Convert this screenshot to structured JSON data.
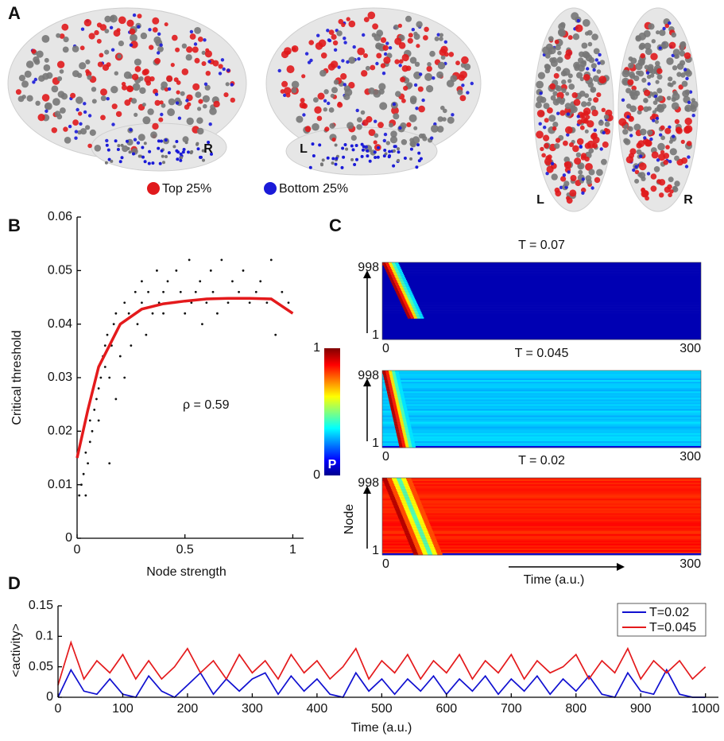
{
  "panel_labels": [
    "A",
    "B",
    "C",
    "D"
  ],
  "brain": {
    "labels": [
      "R",
      "L",
      "L",
      "R"
    ],
    "legend": [
      {
        "name": "Top 25%",
        "color": "#e0191c"
      },
      {
        "name": "Bottom 25%",
        "color": "#1a1ad8"
      }
    ]
  },
  "chart_data": [
    {
      "type": "scatter",
      "x_label": "Node strength",
      "y_label": "Critical threshold",
      "annotation": "ρ = 0.59",
      "xlim": [
        0,
        1.05
      ],
      "ylim": [
        0,
        0.06
      ],
      "xticks": [
        0,
        0.5,
        1
      ],
      "yticks": [
        0,
        0.01,
        0.02,
        0.03,
        0.04,
        0.05,
        0.06
      ],
      "series": [
        {
          "type": "scatter",
          "color": "#111111",
          "x": [
            0.01,
            0.02,
            0.03,
            0.04,
            0.04,
            0.05,
            0.06,
            0.06,
            0.07,
            0.08,
            0.09,
            0.1,
            0.1,
            0.11,
            0.12,
            0.13,
            0.13,
            0.14,
            0.15,
            0.15,
            0.16,
            0.17,
            0.18,
            0.18,
            0.2,
            0.2,
            0.22,
            0.22,
            0.24,
            0.25,
            0.27,
            0.28,
            0.3,
            0.3,
            0.32,
            0.33,
            0.35,
            0.37,
            0.38,
            0.4,
            0.4,
            0.42,
            0.45,
            0.46,
            0.48,
            0.5,
            0.52,
            0.53,
            0.55,
            0.57,
            0.58,
            0.6,
            0.62,
            0.63,
            0.65,
            0.67,
            0.7,
            0.72,
            0.75,
            0.77,
            0.8,
            0.83,
            0.85,
            0.88,
            0.9,
            0.92,
            0.95,
            0.98
          ],
          "values": [
            0.008,
            0.01,
            0.012,
            0.008,
            0.016,
            0.014,
            0.018,
            0.022,
            0.02,
            0.024,
            0.026,
            0.028,
            0.022,
            0.03,
            0.034,
            0.032,
            0.036,
            0.038,
            0.014,
            0.03,
            0.036,
            0.04,
            0.026,
            0.042,
            0.04,
            0.034,
            0.044,
            0.03,
            0.042,
            0.036,
            0.046,
            0.04,
            0.044,
            0.048,
            0.038,
            0.046,
            0.042,
            0.05,
            0.044,
            0.046,
            0.042,
            0.048,
            0.044,
            0.05,
            0.046,
            0.042,
            0.052,
            0.044,
            0.046,
            0.048,
            0.04,
            0.044,
            0.05,
            0.046,
            0.042,
            0.052,
            0.044,
            0.048,
            0.046,
            0.05,
            0.044,
            0.046,
            0.048,
            0.044,
            0.052,
            0.038,
            0.046,
            0.044
          ]
        },
        {
          "type": "line",
          "color": "#e41a1c",
          "x": [
            0,
            0.05,
            0.1,
            0.2,
            0.3,
            0.4,
            0.5,
            0.6,
            0.7,
            0.8,
            0.9,
            1.0
          ],
          "values": [
            0.015,
            0.024,
            0.032,
            0.04,
            0.0428,
            0.0438,
            0.0443,
            0.0447,
            0.0448,
            0.0448,
            0.0447,
            0.042
          ]
        }
      ]
    },
    {
      "type": "heatmap",
      "y_label": "Node",
      "x_label": "Time (a.u.)",
      "panels": [
        {
          "title": "T = 0.07"
        },
        {
          "title": "T = 0.045"
        },
        {
          "title": "T = 0.02"
        }
      ],
      "ylim": [
        1,
        998
      ],
      "yticks": [
        1,
        998
      ],
      "xlim": [
        0,
        300
      ],
      "xticks": [
        0,
        300
      ],
      "colorbar": {
        "label": "P",
        "clim": [
          0,
          1
        ],
        "cticks": [
          0,
          1
        ]
      }
    },
    {
      "type": "line",
      "x_label": "Time (a.u.)",
      "y_label": "<activity>",
      "legend": "upper right",
      "xlim": [
        0,
        1020
      ],
      "ylim": [
        0,
        0.15
      ],
      "xticks": [
        0,
        100,
        200,
        300,
        400,
        500,
        600,
        700,
        800,
        900,
        1000
      ],
      "yticks": [
        0,
        0.05,
        0.1,
        0.15
      ],
      "x": [
        0,
        20,
        40,
        60,
        80,
        100,
        120,
        140,
        160,
        180,
        200,
        220,
        240,
        260,
        280,
        300,
        320,
        340,
        360,
        380,
        400,
        420,
        440,
        460,
        480,
        500,
        520,
        540,
        560,
        580,
        600,
        620,
        640,
        660,
        680,
        700,
        720,
        740,
        760,
        780,
        800,
        820,
        840,
        860,
        880,
        900,
        920,
        940,
        960,
        980,
        1000
      ],
      "series": [
        {
          "name": "T=0.02",
          "color": "#1010d0",
          "values": [
            0,
            0.045,
            0.01,
            0.005,
            0.03,
            0.005,
            0,
            0.035,
            0.01,
            0,
            0.02,
            0.04,
            0.005,
            0.03,
            0.01,
            0.03,
            0.04,
            0.005,
            0.035,
            0.01,
            0.03,
            0.005,
            0,
            0.04,
            0.01,
            0.03,
            0.005,
            0.03,
            0.01,
            0.035,
            0.005,
            0.03,
            0.01,
            0.035,
            0.005,
            0.03,
            0.01,
            0.035,
            0.005,
            0.03,
            0.01,
            0.035,
            0.005,
            0,
            0.04,
            0.01,
            0.005,
            0.045,
            0.005,
            0,
            0
          ]
        },
        {
          "name": "T=0.045",
          "color": "#e41a1c",
          "values": [
            0.02,
            0.09,
            0.03,
            0.06,
            0.04,
            0.07,
            0.03,
            0.06,
            0.03,
            0.05,
            0.08,
            0.04,
            0.06,
            0.03,
            0.07,
            0.04,
            0.06,
            0.03,
            0.07,
            0.04,
            0.06,
            0.03,
            0.05,
            0.08,
            0.03,
            0.06,
            0.04,
            0.07,
            0.03,
            0.06,
            0.04,
            0.07,
            0.03,
            0.06,
            0.04,
            0.07,
            0.03,
            0.06,
            0.04,
            0.05,
            0.07,
            0.03,
            0.06,
            0.04,
            0.08,
            0.03,
            0.06,
            0.04,
            0.06,
            0.03,
            0.05
          ]
        }
      ]
    }
  ]
}
